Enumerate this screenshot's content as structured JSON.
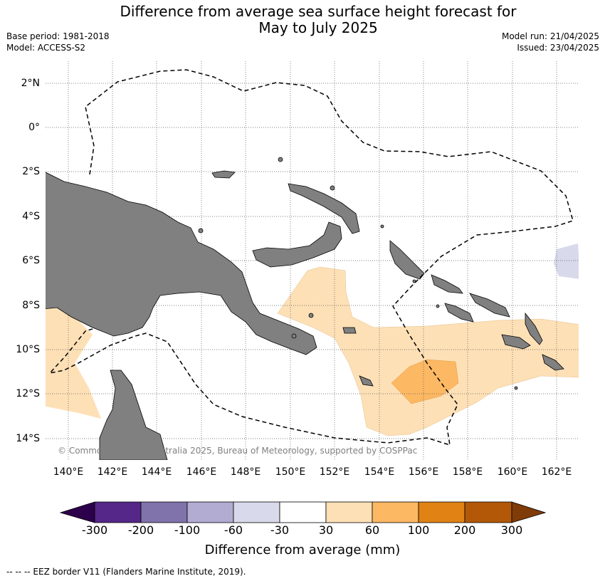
{
  "title_line1": "Difference from average sea surface height forecast for",
  "title_line2": "May to July 2025",
  "base_period": "Base period: 1981-2018",
  "model": "Model: ACCESS-S2",
  "model_run": "Model run: 21/04/2025",
  "issued": "Issued: 23/04/2025",
  "lat_labels": [
    "2°N",
    "0°",
    "2°S",
    "4°S",
    "6°S",
    "8°S",
    "10°S",
    "12°S",
    "14°S"
  ],
  "lon_labels": [
    "140°E",
    "142°E",
    "144°E",
    "146°E",
    "148°E",
    "150°E",
    "152°E",
    "154°E",
    "156°E",
    "158°E",
    "160°E",
    "162°E"
  ],
  "credit": "© Commonwealth of Australia 2025, Bureau of Meteorology, supported by COSPPac",
  "colorbar": {
    "title": "Difference from average (mm)",
    "ticks": [
      "-300",
      "-200",
      "-100",
      "-60",
      "-30",
      "30",
      "60",
      "100",
      "200",
      "300"
    ],
    "colors": [
      "#2d004b",
      "#542788",
      "#8073ac",
      "#b2abd2",
      "#d8daeb",
      "#ffffff",
      "#fee0b6",
      "#fdb863",
      "#e08214",
      "#b35806",
      "#7f3b08"
    ]
  },
  "footer": "-- -- -- EEZ border V11 (Flanders Marine Institute, 2019).",
  "colors": {
    "land": "#808080",
    "anomaly_30_60": "#fee0b6",
    "anomaly_60_100": "#fdb863",
    "anomaly_neg": "#d8daeb"
  }
}
